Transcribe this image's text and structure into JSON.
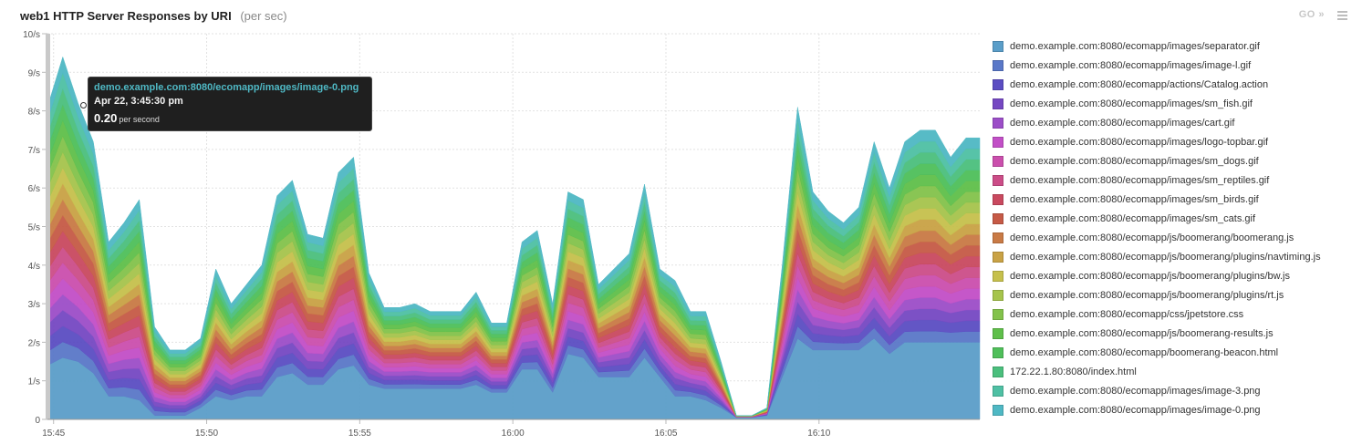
{
  "header": {
    "title": "web1  HTTP Server Responses by URI",
    "unit": "(per sec)",
    "go_label": "GO",
    "go_arrow": "»"
  },
  "tooltip": {
    "series": "demo.example.com:8080/ecomapp/images/image-0.png",
    "time": "Apr 22, 3:45:30 pm",
    "value": "0.20",
    "unit": "per second"
  },
  "chart_data": {
    "type": "area",
    "stacked": true,
    "title": "web1  HTTP Server Responses by URI",
    "ylabel": "(per sec)",
    "ylim": [
      0,
      10
    ],
    "yticks": [
      "0",
      "1/s",
      "2/s",
      "3/s",
      "4/s",
      "5/s",
      "6/s",
      "7/s",
      "8/s",
      "9/s",
      "10/s"
    ],
    "xlim": [
      15.6,
      76.5
    ],
    "xticks": [
      {
        "v": 16,
        "label": "15:45"
      },
      {
        "v": 26,
        "label": "15:50"
      },
      {
        "v": 36,
        "label": "15:55"
      },
      {
        "v": 46,
        "label": "16:00"
      },
      {
        "v": 56,
        "label": "16:05"
      },
      {
        "v": 66,
        "label": "16:10"
      }
    ],
    "grid": true,
    "legend_position": "right",
    "x": [
      15.6,
      16.6,
      17.6,
      18.6,
      19.6,
      20.6,
      21.6,
      22.6,
      23.6,
      24.6,
      25.6,
      26.6,
      27.6,
      28.6,
      29.6,
      30.6,
      31.6,
      32.6,
      33.6,
      34.6,
      35.6,
      36.6,
      37.6,
      38.6,
      39.6,
      40.6,
      41.6,
      42.6,
      43.6,
      44.6,
      45.6,
      46.6,
      47.6,
      48.6,
      49.6,
      50.6,
      51.6,
      52.6,
      53.6,
      54.6,
      55.6,
      56.6,
      57.6,
      58.6,
      59.6,
      60.6,
      61.6,
      62.6,
      63.6,
      64.6,
      65.6,
      66.6,
      67.6,
      68.6,
      69.6,
      70.6,
      71.6,
      72.6,
      73.6,
      74.6,
      75.6,
      76.5
    ],
    "total": [
      8.1,
      9.4,
      8.2,
      7.2,
      4.6,
      5.1,
      5.7,
      2.4,
      1.8,
      1.8,
      2.1,
      3.9,
      3.0,
      3.5,
      4.0,
      5.8,
      6.2,
      4.8,
      4.7,
      6.4,
      6.8,
      3.8,
      2.9,
      2.9,
      3.0,
      2.8,
      2.8,
      2.8,
      3.3,
      2.5,
      2.5,
      4.6,
      4.9,
      3.0,
      5.9,
      5.7,
      3.5,
      3.9,
      4.3,
      6.1,
      3.9,
      3.6,
      2.8,
      2.8,
      1.5,
      0.1,
      0.1,
      0.3,
      4.0,
      8.1,
      5.9,
      5.4,
      5.1,
      5.5,
      7.2,
      6.0,
      7.2,
      7.5,
      7.5,
      6.8,
      7.3,
      7.3
    ],
    "base": [
      1.4,
      1.6,
      1.5,
      1.2,
      0.6,
      0.6,
      0.5,
      0.1,
      0.1,
      0.1,
      0.3,
      0.6,
      0.5,
      0.6,
      0.6,
      1.1,
      1.2,
      0.9,
      0.9,
      1.3,
      1.4,
      0.9,
      0.8,
      0.8,
      0.8,
      0.8,
      0.8,
      0.8,
      0.9,
      0.7,
      0.7,
      1.3,
      1.3,
      0.7,
      1.7,
      1.6,
      1.1,
      1.1,
      1.1,
      1.6,
      1.1,
      0.6,
      0.6,
      0.5,
      0.3,
      0.05,
      0.05,
      0.1,
      1.1,
      2.1,
      1.8,
      1.8,
      1.8,
      1.8,
      2.1,
      1.7,
      2.0,
      2.0,
      2.0,
      2.0,
      2.0,
      2.0
    ],
    "series": [
      {
        "name": "demo.example.com:8080/ecomapp/images/separator.gif",
        "color": "#5b9ec9"
      },
      {
        "name": "demo.example.com:8080/ecomapp/images/image-l.gif",
        "color": "#5a78c8"
      },
      {
        "name": "demo.example.com:8080/ecomapp/actions/Catalog.action",
        "color": "#5b4dc2"
      },
      {
        "name": "demo.example.com:8080/ecomapp/images/sm_fish.gif",
        "color": "#7548c2"
      },
      {
        "name": "demo.example.com:8080/ecomapp/images/cart.gif",
        "color": "#9c4ec8"
      },
      {
        "name": "demo.example.com:8080/ecomapp/images/logo-topbar.gif",
        "color": "#c24fc7"
      },
      {
        "name": "demo.example.com:8080/ecomapp/images/sm_dogs.gif",
        "color": "#cb4fad"
      },
      {
        "name": "demo.example.com:8080/ecomapp/images/sm_reptiles.gif",
        "color": "#cc4d88"
      },
      {
        "name": "demo.example.com:8080/ecomapp/images/sm_birds.gif",
        "color": "#c9495f"
      },
      {
        "name": "demo.example.com:8080/ecomapp/images/sm_cats.gif",
        "color": "#c65a46"
      },
      {
        "name": "demo.example.com:8080/ecomapp/js/boomerang/boomerang.js",
        "color": "#c97a45"
      },
      {
        "name": "demo.example.com:8080/ecomapp/js/boomerang/plugins/navtiming.js",
        "color": "#c9a245"
      },
      {
        "name": "demo.example.com:8080/ecomapp/js/boomerang/plugins/bw.js",
        "color": "#c6c04c"
      },
      {
        "name": "demo.example.com:8080/ecomapp/js/boomerang/plugins/rt.js",
        "color": "#a6c44c"
      },
      {
        "name": "demo.example.com:8080/ecomapp/css/jpetstore.css",
        "color": "#83c24b"
      },
      {
        "name": "demo.example.com:8080/ecomapp/js/boomerang-results.js",
        "color": "#5fbf4a"
      },
      {
        "name": "demo.example.com:8080/ecomapp/boomerang-beacon.html",
        "color": "#4fbf5a"
      },
      {
        "name": "172.22.1.80:8080/index.html",
        "color": "#4bbf7d"
      },
      {
        "name": "demo.example.com:8080/ecomapp/images/image-3.png",
        "color": "#4fc0a4"
      },
      {
        "name": "demo.example.com:8080/ecomapp/images/image-0.png",
        "color": "#4fb8c4"
      }
    ]
  }
}
